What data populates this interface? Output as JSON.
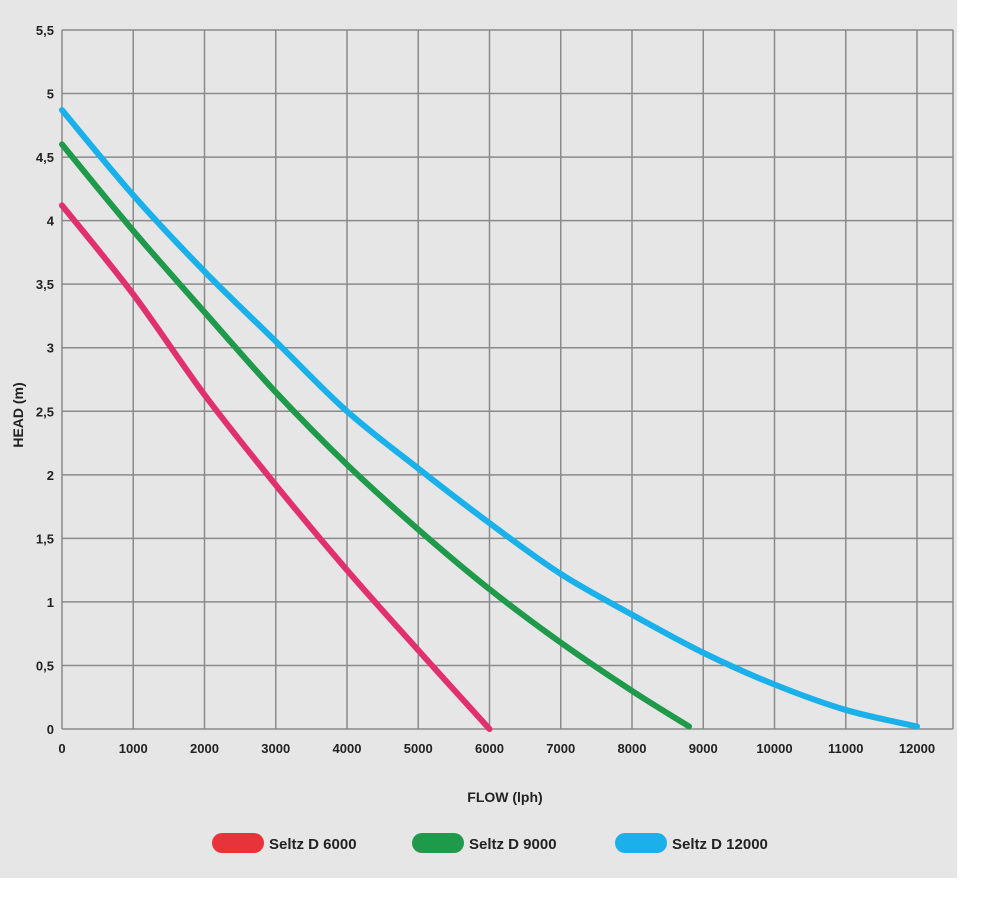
{
  "chart_data": {
    "type": "line",
    "title": "",
    "xlabel": "FLOW (lph)",
    "ylabel": "HEAD (m)",
    "xlim": [
      0,
      12000
    ],
    "ylim": [
      0,
      5.5
    ],
    "xticks": [
      "0",
      "1000",
      "2000",
      "3000",
      "4000",
      "5000",
      "6000",
      "7000",
      "8000",
      "9000",
      "10000",
      "11000",
      "12000"
    ],
    "yticks": [
      "0",
      "0,5",
      "1",
      "1,5",
      "2",
      "2,5",
      "3",
      "3,5",
      "4",
      "4,5",
      "5",
      "5,5"
    ],
    "grid": true,
    "legend_position": "bottom",
    "series": [
      {
        "name": "Seltz D 6000",
        "color": "#e0306e",
        "legend_color": "#e8333a",
        "x": [
          0,
          1000,
          2000,
          3000,
          4000,
          5000,
          6000
        ],
        "y": [
          4.12,
          3.42,
          2.63,
          1.92,
          1.25,
          0.62,
          0.0
        ]
      },
      {
        "name": "Seltz D 9000",
        "color": "#1f9a4a",
        "legend_color": "#1f9a4a",
        "x": [
          0,
          1000,
          2000,
          3000,
          4000,
          5000,
          6000,
          7000,
          8000,
          8800
        ],
        "y": [
          4.6,
          3.92,
          3.28,
          2.65,
          2.08,
          1.57,
          1.1,
          0.68,
          0.3,
          0.02
        ]
      },
      {
        "name": "Seltz D 12000",
        "color": "#1ab0ea",
        "legend_color": "#1ab0ea",
        "x": [
          0,
          1000,
          2000,
          3000,
          4000,
          5000,
          6000,
          7000,
          8000,
          9000,
          10000,
          11000,
          12000
        ],
        "y": [
          4.87,
          4.2,
          3.6,
          3.05,
          2.5,
          2.05,
          1.62,
          1.22,
          0.9,
          0.6,
          0.35,
          0.15,
          0.02
        ]
      }
    ]
  }
}
